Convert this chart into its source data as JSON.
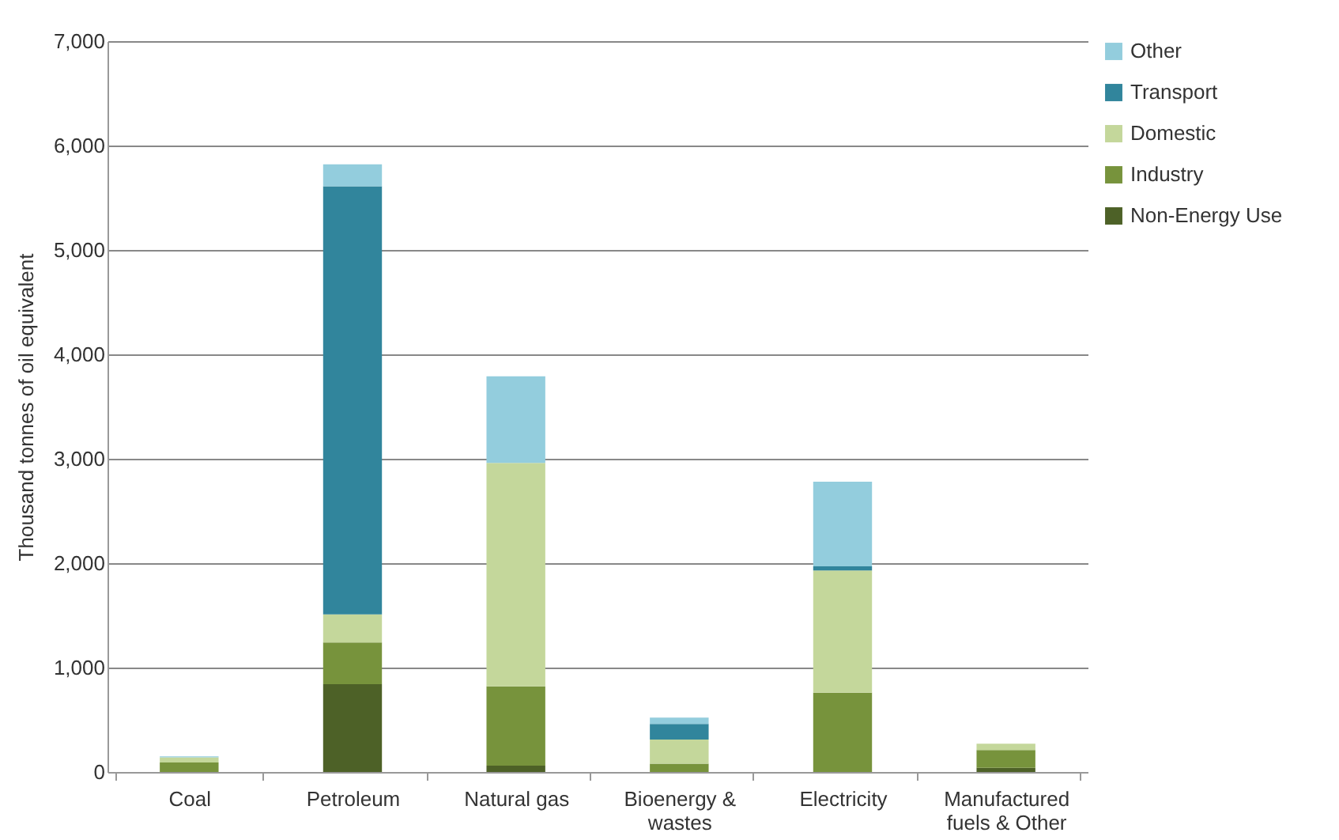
{
  "chart_data": {
    "type": "bar",
    "stacked": true,
    "ylabel": "Thousand tonnes of oil equivalent",
    "categories": [
      "Coal",
      "Petroleum",
      "Natural gas",
      "Bioenergy & wastes",
      "Electricity",
      "Manufactured fuels & Other"
    ],
    "series": [
      {
        "name": "Non-Energy Use",
        "color": "#4d6127",
        "values": [
          0,
          840,
          60,
          0,
          0,
          40
        ]
      },
      {
        "name": "Industry",
        "color": "#77933c",
        "values": [
          90,
          400,
          760,
          80,
          760,
          170
        ]
      },
      {
        "name": "Domestic",
        "color": "#c4d79b",
        "values": [
          50,
          270,
          2140,
          230,
          1170,
          60
        ]
      },
      {
        "name": "Transport",
        "color": "#31859c",
        "values": [
          0,
          4100,
          0,
          150,
          40,
          0
        ]
      },
      {
        "name": "Other",
        "color": "#93cddd",
        "values": [
          10,
          210,
          830,
          60,
          810,
          0
        ]
      }
    ],
    "ylim": [
      0,
      7000
    ],
    "yticks": [
      0,
      {
        "value": 1000,
        "label": "1,000"
      },
      {
        "value": 2000,
        "label": "2,000"
      },
      {
        "value": 3000,
        "label": "3,000"
      },
      {
        "value": 4000,
        "label": "4,000"
      },
      {
        "value": 5000,
        "label": "5,000"
      },
      {
        "value": 6000,
        "label": "6,000"
      },
      {
        "value": 7000,
        "label": "7,000"
      }
    ],
    "grid": "y",
    "legend": "right"
  }
}
